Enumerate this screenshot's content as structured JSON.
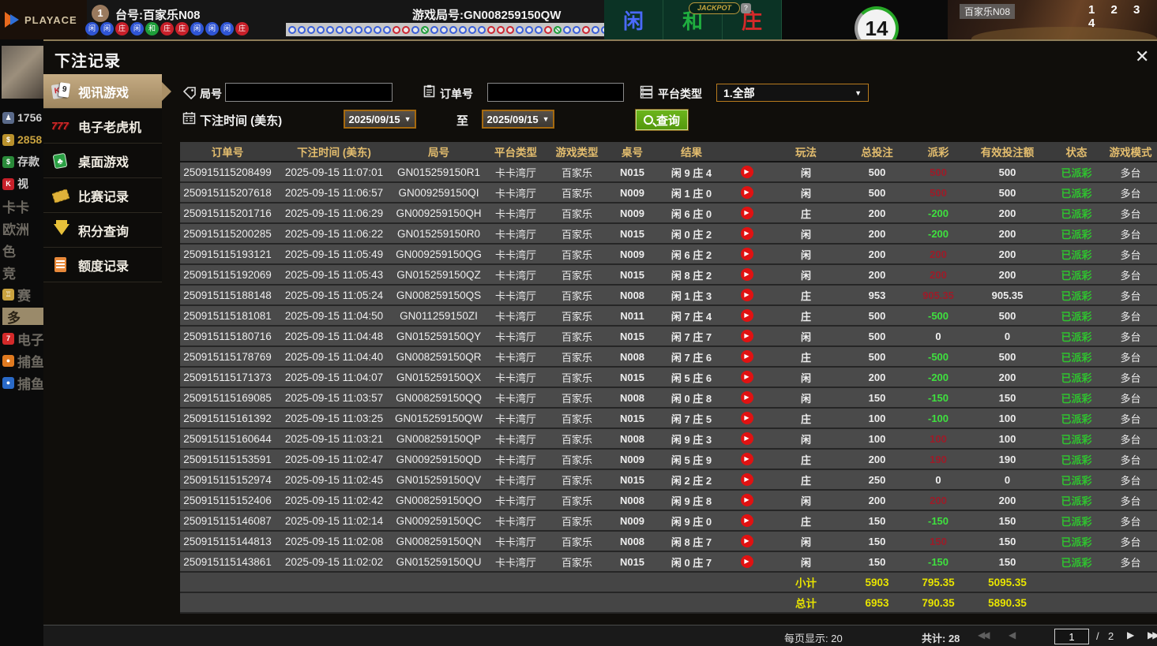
{
  "top_bar": {
    "logo": "PLAYACE",
    "table_badge": "1",
    "table_label": "台号:百家乐N08",
    "round_label": "游戏局号:GN008259150QW",
    "bet_cells": [
      {
        "label": "闲",
        "color": "#4a6aff"
      },
      {
        "label": "和",
        "color": "#1fae3f"
      },
      {
        "label": "庄",
        "color": "#d42a2a"
      }
    ],
    "jackpot_label": "JACKPOT",
    "jackpot_help": "?",
    "timer": "14",
    "video_label": "百家乐N08",
    "video_numbers": "1 2 3 4",
    "beads": [
      {
        "t": "闲",
        "c": "blue"
      },
      {
        "t": "闲",
        "c": "blue"
      },
      {
        "t": "庄",
        "c": "red"
      },
      {
        "t": "闲",
        "c": "blue"
      },
      {
        "t": "和",
        "c": "green"
      },
      {
        "t": "庄",
        "c": "red"
      },
      {
        "t": "庄",
        "c": "red"
      },
      {
        "t": "闲",
        "c": "blue"
      },
      {
        "t": "闲",
        "c": "blue"
      },
      {
        "t": "闲",
        "c": "blue"
      },
      {
        "t": "庄",
        "c": "red"
      }
    ],
    "road": [
      "b",
      "b",
      "b",
      "b",
      "b",
      "b",
      "b",
      "b",
      "b",
      "b",
      "b",
      "r",
      "r",
      "b",
      "g",
      "b",
      "b",
      "b",
      "b",
      "b",
      "b",
      "r",
      "r",
      "r",
      "b",
      "b",
      "b",
      "r",
      "g",
      "b",
      "b",
      "r",
      "b",
      "b",
      "r",
      "r"
    ]
  },
  "bg_sidebar": {
    "items": [
      {
        "label": "1756",
        "cls": "bgl-white",
        "icon": "person"
      },
      {
        "label": "2858",
        "cls": "bgl-gold",
        "icon": "money"
      },
      {
        "label": "存款",
        "cls": "bgl-white",
        "icon": "dollar"
      },
      {
        "label": "视",
        "cls": "bgl-white",
        "icon": "card"
      },
      {
        "label": "卡卡",
        "cls": "bgl-dim",
        "icon": ""
      },
      {
        "label": "欧洲",
        "cls": "bgl-dim",
        "icon": ""
      },
      {
        "label": "色",
        "cls": "bgl-dim",
        "icon": ""
      },
      {
        "label": "竞",
        "cls": "bgl-dim",
        "icon": ""
      },
      {
        "label": "赛",
        "cls": "bgl-dim",
        "icon": "trophy"
      },
      {
        "label": "多",
        "cls": "bgl-sel",
        "icon": ""
      },
      {
        "label": "电子",
        "cls": "bgl-dim",
        "icon": "s777"
      },
      {
        "label": "捕鱼",
        "cls": "bgl-dim",
        "icon": "fish"
      },
      {
        "label": "捕鱼",
        "cls": "bgl-dim",
        "icon": "fish2"
      }
    ]
  },
  "modal": {
    "title": "下注记录",
    "close": "✕"
  },
  "menu": {
    "items": [
      {
        "label": "视讯游戏",
        "icon": "cards",
        "selected": true
      },
      {
        "label": "电子老虎机",
        "icon": "slot",
        "selected": false
      },
      {
        "label": "桌面游戏",
        "icon": "tablegame",
        "selected": false
      },
      {
        "label": "比赛记录",
        "icon": "ticket",
        "selected": false
      },
      {
        "label": "积分查询",
        "icon": "gem",
        "selected": false
      },
      {
        "label": "额度记录",
        "icon": "doc",
        "selected": false
      }
    ]
  },
  "filters": {
    "round_label": "局号",
    "round_value": "",
    "order_label": "订单号",
    "order_value": "",
    "platform_label": "平台类型",
    "platform_value": "1.全部",
    "time_label": "下注时间 (美东)",
    "date_from": "2025/09/15",
    "to_label": "至",
    "date_to": "2025/09/15",
    "search_label": "查询"
  },
  "table": {
    "headers": [
      "订单号",
      "下注时间 (美东)",
      "局号",
      "平台类型",
      "游戏类型",
      "桌号",
      "结果",
      "",
      "玩法",
      "总投注",
      "派彩",
      "有效投注额",
      "状态",
      "游戏模式"
    ],
    "rows": [
      {
        "order": "250915115208499",
        "time": "2025-09-15 11:07:01",
        "round": "GN015259150R1",
        "platform": "卡卡湾厅",
        "game": "百家乐",
        "table_no": "N015",
        "result": "闲 9 庄 4",
        "play": "闲",
        "bet": "500",
        "payout": "500",
        "payout_color": "red",
        "valid": "500",
        "status": "已派彩",
        "mode": "多台"
      },
      {
        "order": "250915115207618",
        "time": "2025-09-15 11:06:57",
        "round": "GN009259150QI",
        "platform": "卡卡湾厅",
        "game": "百家乐",
        "table_no": "N009",
        "result": "闲 1 庄 0",
        "play": "闲",
        "bet": "500",
        "payout": "500",
        "payout_color": "red",
        "valid": "500",
        "status": "已派彩",
        "mode": "多台"
      },
      {
        "order": "250915115201716",
        "time": "2025-09-15 11:06:29",
        "round": "GN009259150QH",
        "platform": "卡卡湾厅",
        "game": "百家乐",
        "table_no": "N009",
        "result": "闲 6 庄 0",
        "play": "庄",
        "bet": "200",
        "payout": "-200",
        "payout_color": "green",
        "valid": "200",
        "status": "已派彩",
        "mode": "多台"
      },
      {
        "order": "250915115200285",
        "time": "2025-09-15 11:06:22",
        "round": "GN015259150R0",
        "platform": "卡卡湾厅",
        "game": "百家乐",
        "table_no": "N015",
        "result": "闲 0 庄 2",
        "play": "闲",
        "bet": "200",
        "payout": "-200",
        "payout_color": "green",
        "valid": "200",
        "status": "已派彩",
        "mode": "多台"
      },
      {
        "order": "250915115193121",
        "time": "2025-09-15 11:05:49",
        "round": "GN009259150QG",
        "platform": "卡卡湾厅",
        "game": "百家乐",
        "table_no": "N009",
        "result": "闲 6 庄 2",
        "play": "闲",
        "bet": "200",
        "payout": "200",
        "payout_color": "red",
        "valid": "200",
        "status": "已派彩",
        "mode": "多台"
      },
      {
        "order": "250915115192069",
        "time": "2025-09-15 11:05:43",
        "round": "GN015259150QZ",
        "platform": "卡卡湾厅",
        "game": "百家乐",
        "table_no": "N015",
        "result": "闲 8 庄 2",
        "play": "闲",
        "bet": "200",
        "payout": "200",
        "payout_color": "red",
        "valid": "200",
        "status": "已派彩",
        "mode": "多台"
      },
      {
        "order": "250915115188148",
        "time": "2025-09-15 11:05:24",
        "round": "GN008259150QS",
        "platform": "卡卡湾厅",
        "game": "百家乐",
        "table_no": "N008",
        "result": "闲 1 庄 3",
        "play": "庄",
        "bet": "953",
        "payout": "905.35",
        "payout_color": "red",
        "valid": "905.35",
        "status": "已派彩",
        "mode": "多台"
      },
      {
        "order": "250915115181081",
        "time": "2025-09-15 11:04:50",
        "round": "GN011259150ZI",
        "platform": "卡卡湾厅",
        "game": "百家乐",
        "table_no": "N011",
        "result": "闲 7 庄 4",
        "play": "庄",
        "bet": "500",
        "payout": "-500",
        "payout_color": "green",
        "valid": "500",
        "status": "已派彩",
        "mode": "多台"
      },
      {
        "order": "250915115180716",
        "time": "2025-09-15 11:04:48",
        "round": "GN015259150QY",
        "platform": "卡卡湾厅",
        "game": "百家乐",
        "table_no": "N015",
        "result": "闲 7 庄 7",
        "play": "闲",
        "bet": "500",
        "payout": "0",
        "payout_color": "white",
        "valid": "0",
        "status": "已派彩",
        "mode": "多台"
      },
      {
        "order": "250915115178769",
        "time": "2025-09-15 11:04:40",
        "round": "GN008259150QR",
        "platform": "卡卡湾厅",
        "game": "百家乐",
        "table_no": "N008",
        "result": "闲 7 庄 6",
        "play": "庄",
        "bet": "500",
        "payout": "-500",
        "payout_color": "green",
        "valid": "500",
        "status": "已派彩",
        "mode": "多台"
      },
      {
        "order": "250915115171373",
        "time": "2025-09-15 11:04:07",
        "round": "GN015259150QX",
        "platform": "卡卡湾厅",
        "game": "百家乐",
        "table_no": "N015",
        "result": "闲 5 庄 6",
        "play": "闲",
        "bet": "200",
        "payout": "-200",
        "payout_color": "green",
        "valid": "200",
        "status": "已派彩",
        "mode": "多台"
      },
      {
        "order": "250915115169085",
        "time": "2025-09-15 11:03:57",
        "round": "GN008259150QQ",
        "platform": "卡卡湾厅",
        "game": "百家乐",
        "table_no": "N008",
        "result": "闲 0 庄 8",
        "play": "闲",
        "bet": "150",
        "payout": "-150",
        "payout_color": "green",
        "valid": "150",
        "status": "已派彩",
        "mode": "多台"
      },
      {
        "order": "250915115161392",
        "time": "2025-09-15 11:03:25",
        "round": "GN015259150QW",
        "platform": "卡卡湾厅",
        "game": "百家乐",
        "table_no": "N015",
        "result": "闲 7 庄 5",
        "play": "庄",
        "bet": "100",
        "payout": "-100",
        "payout_color": "green",
        "valid": "100",
        "status": "已派彩",
        "mode": "多台"
      },
      {
        "order": "250915115160644",
        "time": "2025-09-15 11:03:21",
        "round": "GN008259150QP",
        "platform": "卡卡湾厅",
        "game": "百家乐",
        "table_no": "N008",
        "result": "闲 9 庄 3",
        "play": "闲",
        "bet": "100",
        "payout": "100",
        "payout_color": "red",
        "valid": "100",
        "status": "已派彩",
        "mode": "多台"
      },
      {
        "order": "250915115153591",
        "time": "2025-09-15 11:02:47",
        "round": "GN009259150QD",
        "platform": "卡卡湾厅",
        "game": "百家乐",
        "table_no": "N009",
        "result": "闲 5 庄 9",
        "play": "庄",
        "bet": "200",
        "payout": "190",
        "payout_color": "red",
        "valid": "190",
        "status": "已派彩",
        "mode": "多台"
      },
      {
        "order": "250915115152974",
        "time": "2025-09-15 11:02:45",
        "round": "GN015259150QV",
        "platform": "卡卡湾厅",
        "game": "百家乐",
        "table_no": "N015",
        "result": "闲 2 庄 2",
        "play": "庄",
        "bet": "250",
        "payout": "0",
        "payout_color": "white",
        "valid": "0",
        "status": "已派彩",
        "mode": "多台"
      },
      {
        "order": "250915115152406",
        "time": "2025-09-15 11:02:42",
        "round": "GN008259150QO",
        "platform": "卡卡湾厅",
        "game": "百家乐",
        "table_no": "N008",
        "result": "闲 9 庄 8",
        "play": "闲",
        "bet": "200",
        "payout": "200",
        "payout_color": "red",
        "valid": "200",
        "status": "已派彩",
        "mode": "多台"
      },
      {
        "order": "250915115146087",
        "time": "2025-09-15 11:02:14",
        "round": "GN009259150QC",
        "platform": "卡卡湾厅",
        "game": "百家乐",
        "table_no": "N009",
        "result": "闲 9 庄 0",
        "play": "庄",
        "bet": "150",
        "payout": "-150",
        "payout_color": "green",
        "valid": "150",
        "status": "已派彩",
        "mode": "多台"
      },
      {
        "order": "250915115144813",
        "time": "2025-09-15 11:02:08",
        "round": "GN008259150QN",
        "platform": "卡卡湾厅",
        "game": "百家乐",
        "table_no": "N008",
        "result": "闲 8 庄 7",
        "play": "闲",
        "bet": "150",
        "payout": "150",
        "payout_color": "red",
        "valid": "150",
        "status": "已派彩",
        "mode": "多台"
      },
      {
        "order": "250915115143861",
        "time": "2025-09-15 11:02:02",
        "round": "GN015259150QU",
        "platform": "卡卡湾厅",
        "game": "百家乐",
        "table_no": "N015",
        "result": "闲 0 庄 7",
        "play": "闲",
        "bet": "150",
        "payout": "-150",
        "payout_color": "green",
        "valid": "150",
        "status": "已派彩",
        "mode": "多台"
      }
    ],
    "subtotal": {
      "label": "小计",
      "bet": "5903",
      "payout": "795.35",
      "valid": "5095.35"
    },
    "total": {
      "label": "总计",
      "bet": "6953",
      "payout": "790.35",
      "valid": "5890.35"
    }
  },
  "footer": {
    "per_page": "每页显示: 20",
    "total_count": "共计: 28",
    "first": "◀◀",
    "prev": "◀",
    "page": "1",
    "page_sep": "/",
    "page_total": "2",
    "next": "▶",
    "last": "▶▶"
  },
  "colors": {
    "header_gold": "#e3bd6e",
    "total_yellow": "#e8e400",
    "payout_win_red": "#9c1c29",
    "payout_lose_green": "#3fe03f",
    "status_green": "#2fc32f",
    "menu_selected_tan": "#b9a27f",
    "query_green": "#5fae17",
    "date_border_orange": "#a5690f"
  }
}
